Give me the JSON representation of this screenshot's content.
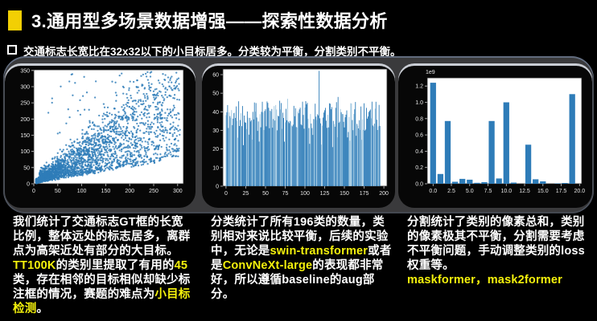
{
  "header": {
    "title": "3.通用型多场景数据增强——探索性数据分析"
  },
  "subheader": {
    "text": "交通标志长宽比在32x32以下的小目标居多。分类较为平衡，分割类别不平衡。"
  },
  "colors": {
    "background": "#000000",
    "band": "#3a3a3c",
    "panel": "#070707",
    "title_bullet_yellow": "#f2cf04",
    "highlight_yellow": "#f4f10c",
    "plot_blue": "#2e7cb8",
    "plot_blue_light": "#9cc6e0",
    "tick_label": "#e6e6e6",
    "spine": "#2a2a2a"
  },
  "chart_data": [
    {
      "type": "scatter",
      "title": "",
      "xlabel": "",
      "ylabel": "",
      "xlim": [
        0,
        312
      ],
      "ylim": [
        0,
        352
      ],
      "x_ticks": [
        0,
        50,
        100,
        150,
        200,
        250,
        300
      ],
      "y_ticks": [
        0,
        50,
        100,
        150,
        200,
        250,
        300,
        350
      ],
      "grid": false,
      "legend": "none",
      "description": "交通标志GT框长宽散点图：大量小目标(32x32以下)密集于原点附近的楔形区域，离群点为高架近处的大目标，最大约310×340",
      "generator": {
        "seed": 7,
        "n_core": 2300,
        "n_spread": 500,
        "n_outliers": 80
      }
    },
    {
      "type": "bar",
      "title": "",
      "xlabel": "",
      "ylabel": "",
      "n_categories": 196,
      "xlim": [
        -4,
        204
      ],
      "ylim": [
        0,
        63
      ],
      "x_ticks": [
        0,
        25,
        50,
        75,
        100,
        125,
        150,
        175,
        200
      ],
      "y_ticks": [
        0,
        10,
        20,
        30,
        40,
        50,
        60
      ],
      "grid": false,
      "legend": "none",
      "value_range": [
        30,
        46
      ],
      "overrides": {
        "78": 47,
        "118": 62,
        "135": 21,
        "142": 48
      },
      "description": "196个分类类别的样本数量直方图：大体平衡，多数在28~48之间，约第118类出现62的峰值",
      "generator": {
        "seed": 11
      }
    },
    {
      "type": "bar",
      "title": "",
      "xlabel": "",
      "ylabel": "",
      "unit_label": "1e9",
      "categories": [
        0,
        1,
        2,
        3,
        4,
        5,
        6,
        7,
        8,
        9,
        10,
        11,
        12,
        13,
        14,
        15,
        16,
        17,
        18,
        19
      ],
      "values": [
        1.24,
        0.12,
        0.77,
        0.025,
        0.06,
        0.05,
        0.012,
        0.02,
        0.77,
        0.065,
        1.0,
        0.015,
        0,
        0.48,
        0.055,
        0.03,
        0,
        0.005,
        0.01,
        1.1
      ],
      "xlim": [
        -0.8,
        20.3
      ],
      "ylim": [
        0,
        1.3
      ],
      "x_ticks": [
        0,
        2.5,
        5,
        7.5,
        10,
        12.5,
        15,
        17.5,
        20
      ],
      "x_tick_labels": [
        "0.0",
        "2.5",
        "5.0",
        "7.5",
        "10.0",
        "12.5",
        "15.0",
        "17.5",
        "20.0"
      ],
      "y_ticks": [
        0,
        0.2,
        0.4,
        0.6,
        0.8,
        1.0,
        1.2
      ],
      "y_tick_labels": [
        "0.0",
        "0.2",
        "0.4",
        "0.6",
        "0.8",
        "1.0",
        "1.2"
      ],
      "grid": false,
      "legend": "none",
      "description": "分割各类别像素总和(×1e9)：极不平衡，类别0/2/8/10/13/19像素量远高于其他类别"
    }
  ],
  "notes": [
    {
      "segments": [
        {
          "text": "我们统计了交通标志GT框的长宽比例，整体远处的标志居多，离群点为高架近处有部分的大目标。\n",
          "color": "white"
        },
        {
          "text": "TT100K",
          "color": "yellow"
        },
        {
          "text": "的类别里提取了有用的",
          "color": "white"
        },
        {
          "text": "45",
          "color": "yellow"
        },
        {
          "text": "类，存在相邻的目标相似却缺少标注框的情况，赛题的难点为",
          "color": "white"
        },
        {
          "text": "小目标检测",
          "color": "yellow"
        },
        {
          "text": "。",
          "color": "white"
        }
      ]
    },
    {
      "segments": [
        {
          "text": "分类统计了所有196类的数量，类别相对来说比较平衡，后续的实验中，无论是",
          "color": "white"
        },
        {
          "text": "swin-transformer",
          "color": "yellow"
        },
        {
          "text": "或者是",
          "color": "white"
        },
        {
          "text": "ConvNeXt-large",
          "color": "yellow"
        },
        {
          "text": "的表现都非常好，所以遵循baseline的aug部分。",
          "color": "white"
        }
      ]
    },
    {
      "segments": [
        {
          "text": "分割统计了类别的像素总和，类别的像素极其不平衡，分割需要考虑不平衡问题，手动调整类别的loss权重等。\n",
          "color": "white"
        },
        {
          "text": "maskformer，mask2former",
          "color": "yellow"
        }
      ]
    }
  ]
}
